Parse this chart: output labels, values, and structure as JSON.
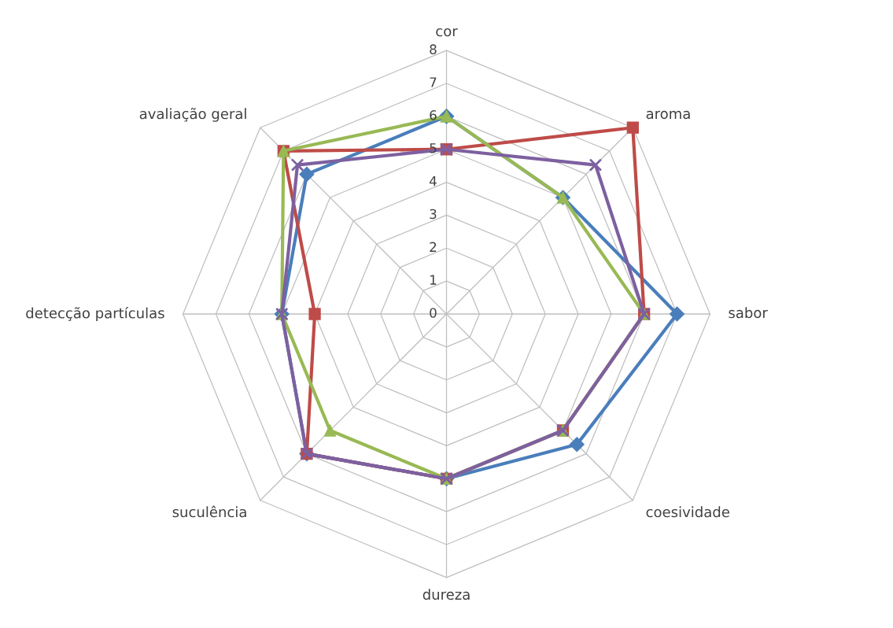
{
  "chart_data": {
    "type": "radar",
    "categories": [
      "cor",
      "aroma",
      "sabor",
      "coesividade",
      "dureza",
      "suculência",
      "detecção partículas",
      "avaliação geral"
    ],
    "ylim": [
      0,
      8
    ],
    "yticks": [
      0,
      1,
      2,
      3,
      4,
      5,
      6,
      7,
      8
    ],
    "grid": true,
    "series": [
      {
        "color": "#4a7ebb",
        "marker": "diamond",
        "values": [
          6,
          5,
          7,
          5.6,
          5,
          6,
          5,
          6
        ]
      },
      {
        "color": "#be4b48",
        "marker": "square",
        "values": [
          5,
          8,
          6,
          5,
          5,
          6,
          4,
          7
        ]
      },
      {
        "color": "#98b954",
        "marker": "triangle",
        "values": [
          6,
          5,
          6,
          5,
          5,
          5,
          5,
          7
        ]
      },
      {
        "color": "#7d60a0",
        "marker": "cross",
        "values": [
          5,
          6.4,
          6,
          5,
          5,
          6,
          5,
          6.4
        ]
      }
    ]
  }
}
